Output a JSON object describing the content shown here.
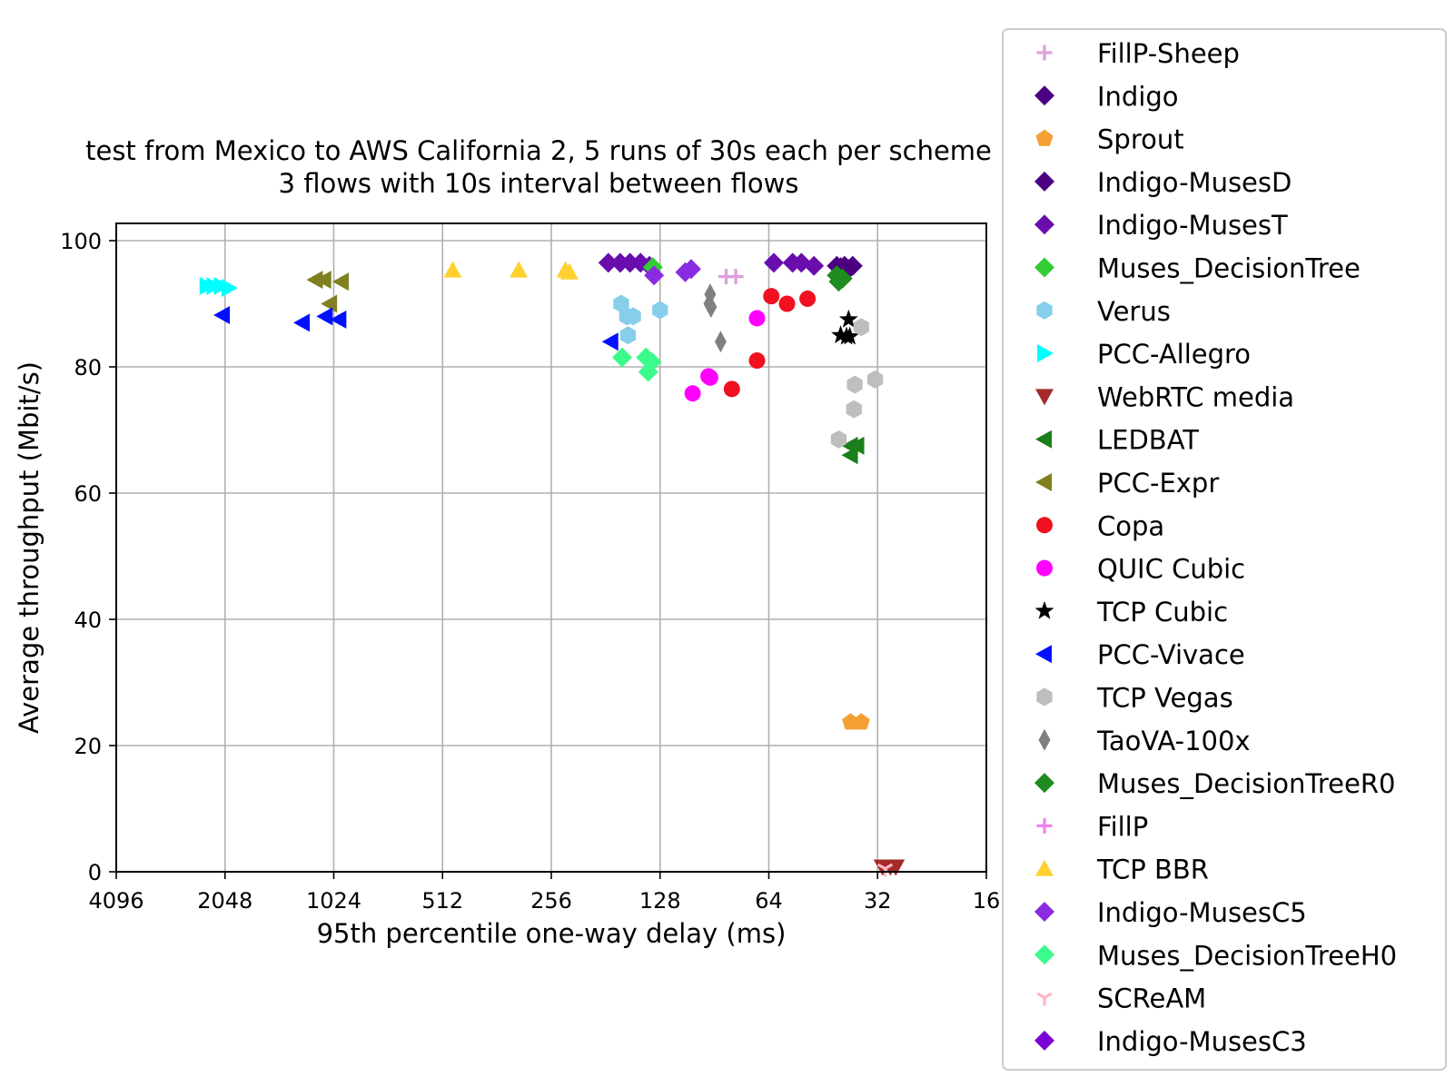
{
  "chart_data": {
    "type": "scatter",
    "title": "test from Mexico to AWS California 2, 5 runs of 30s each per scheme",
    "subtitle": "3 flows with 10s interval between flows",
    "xlabel": "95th percentile one-way delay (ms)",
    "ylabel": "Average throughput (Mbit/s)",
    "x_scale": "log2",
    "x_inverted": true,
    "xlim": [
      4096,
      16
    ],
    "ylim": [
      0,
      103
    ],
    "x_ticks": [
      4096,
      2048,
      1024,
      512,
      256,
      128,
      64,
      32,
      16
    ],
    "x_tick_labels": [
      "4096",
      "2048",
      "1024",
      "512",
      "256",
      "128",
      "64",
      "32",
      "16"
    ],
    "y_ticks": [
      0,
      20,
      40,
      60,
      80,
      100
    ],
    "y_tick_labels": [
      "0",
      "20",
      "40",
      "60",
      "80",
      "100"
    ],
    "grid": true,
    "legend_position": "outside-right",
    "series": [
      {
        "name": "FillP-Sheep",
        "marker": "plus",
        "color": "#dda0dd",
        "points": [
          [
            84,
            94.3
          ],
          [
            79,
            94.3
          ]
        ]
      },
      {
        "name": "Indigo",
        "marker": "diamond",
        "color": "#4b0082",
        "points": [
          [
            41.5,
            96.0
          ],
          [
            39.5,
            96.0
          ],
          [
            37.5,
            96.0
          ],
          [
            38.5,
            95.5
          ]
        ]
      },
      {
        "name": "Sprout",
        "marker": "pentagon",
        "color": "#f4a034",
        "points": [
          [
            38.0,
            23.7
          ],
          [
            35.5,
            23.7
          ]
        ]
      },
      {
        "name": "Indigo-MusesD",
        "marker": "diamond",
        "color": "#4b0082",
        "points": [
          [
            40.5,
            95.8
          ]
        ]
      },
      {
        "name": "Indigo-MusesT",
        "marker": "diamond",
        "color": "#6a0dad",
        "points": [
          [
            178,
            96.5
          ],
          [
            165,
            96.5
          ],
          [
            155,
            96.5
          ],
          [
            145,
            96.5
          ],
          [
            137,
            96.0
          ],
          [
            62,
            96.5
          ],
          [
            55,
            96.5
          ],
          [
            52,
            96.5
          ],
          [
            48,
            96.0
          ]
        ]
      },
      {
        "name": "Muses_DecisionTree",
        "marker": "diamond",
        "color": "#32cd32",
        "points": [
          [
            134,
            95.8
          ]
        ]
      },
      {
        "name": "Verus",
        "marker": "hexagon",
        "color": "#87ceeb",
        "points": [
          [
            164,
            90.0
          ],
          [
            158,
            88.0
          ],
          [
            152,
            88.0
          ],
          [
            157,
            85.0
          ],
          [
            128,
            89.0
          ]
        ]
      },
      {
        "name": "PCC-Allegro",
        "marker": "triangle-right",
        "color": "#00ffff",
        "points": [
          [
            2300,
            92.8
          ],
          [
            2200,
            92.8
          ],
          [
            2100,
            92.8
          ],
          [
            2000,
            92.5
          ]
        ]
      },
      {
        "name": "WebRTC media",
        "marker": "triangle-down",
        "color": "#a52a2a",
        "points": [
          [
            31,
            0.8
          ],
          [
            29.5,
            0.8
          ],
          [
            28.5,
            0.8
          ]
        ]
      },
      {
        "name": "LEDBAT",
        "marker": "triangle-left",
        "color": "#1a7f1a",
        "points": [
          [
            38.0,
            67.5
          ],
          [
            36.5,
            67.5
          ],
          [
            38.0,
            66.0
          ]
        ]
      },
      {
        "name": "PCC-Expr",
        "marker": "triangle-left",
        "color": "#808020",
        "points": [
          [
            1150,
            93.8
          ],
          [
            1090,
            93.8
          ],
          [
            975,
            93.5
          ],
          [
            1050,
            90.0
          ]
        ]
      },
      {
        "name": "Copa",
        "marker": "circle",
        "color": "#f01020",
        "points": [
          [
            63,
            91.2
          ],
          [
            57,
            90.0
          ],
          [
            50,
            90.8
          ],
          [
            69,
            81.0
          ],
          [
            81,
            76.5
          ]
        ]
      },
      {
        "name": "QUIC Cubic",
        "marker": "circle",
        "color": "#ff00ff",
        "points": [
          [
            69,
            87.7
          ],
          [
            93,
            78.3
          ],
          [
            94,
            78.5
          ],
          [
            104,
            75.8
          ]
        ]
      },
      {
        "name": "TCP Cubic",
        "marker": "star",
        "color": "#000000",
        "points": [
          [
            38.5,
            87.5
          ],
          [
            40.5,
            85.0
          ],
          [
            39.0,
            84.8
          ],
          [
            38.2,
            84.8
          ]
        ]
      },
      {
        "name": "PCC-Vivace",
        "marker": "triangle-left",
        "color": "#0010ff",
        "points": [
          [
            2080,
            88.2
          ],
          [
            1250,
            87.0
          ],
          [
            1080,
            88.0
          ],
          [
            990,
            87.5
          ],
          [
            175,
            84.0
          ]
        ]
      },
      {
        "name": "TCP Vegas",
        "marker": "hexagon",
        "color": "#bebebe",
        "points": [
          [
            35.5,
            86.3
          ],
          [
            32.5,
            78.0
          ],
          [
            37.0,
            77.2
          ],
          [
            37.2,
            73.3
          ],
          [
            41.0,
            68.5
          ]
        ]
      },
      {
        "name": "TaoVA-100x",
        "marker": "thin-diamond",
        "color": "#808080",
        "points": [
          [
            93,
            91.5
          ],
          [
            93.5,
            90.0
          ],
          [
            92.5,
            89.5
          ],
          [
            87,
            84.0
          ]
        ]
      },
      {
        "name": "Muses_DecisionTreeR0",
        "marker": "diamond",
        "color": "#1e8c1e",
        "points": [
          [
            41.5,
            94.5
          ],
          [
            40.0,
            94.0
          ],
          [
            41.0,
            93.5
          ]
        ]
      },
      {
        "name": "FillP",
        "marker": "plus",
        "color": "#ee82ee",
        "points": []
      },
      {
        "name": "TCP BBR",
        "marker": "triangle-up",
        "color": "#ffd030",
        "points": [
          [
            480,
            95.3
          ],
          [
            315,
            95.3
          ],
          [
            234,
            95.3
          ],
          [
            228,
            95.0
          ]
        ]
      },
      {
        "name": "Indigo-MusesC5",
        "marker": "diamond",
        "color": "#8a2be2",
        "points": [
          [
            109,
            95.0
          ],
          [
            105,
            95.5
          ],
          [
            133,
            94.5
          ]
        ]
      },
      {
        "name": "Muses_DecisionTreeH0",
        "marker": "diamond",
        "color": "#3cfa8c",
        "points": [
          [
            163,
            81.5
          ],
          [
            140,
            81.5
          ],
          [
            135,
            80.8
          ],
          [
            138,
            79.2
          ]
        ]
      },
      {
        "name": "SCReAM",
        "marker": "tri-down",
        "color": "#ffb6c1",
        "points": [
          [
            30.5,
            0.5
          ]
        ]
      },
      {
        "name": "Indigo-MusesC3",
        "marker": "diamond",
        "color": "#7b00d4",
        "points": []
      }
    ]
  }
}
